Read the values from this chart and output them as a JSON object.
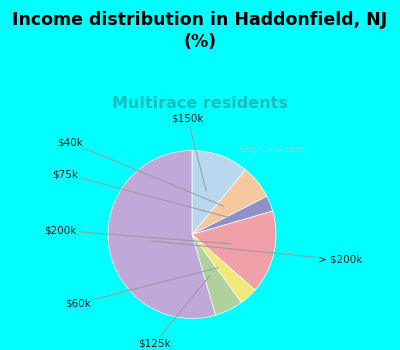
{
  "title": "Income distribution in Haddonfield, NJ\n(%)",
  "subtitle": "Multirace residents",
  "subtitle_color": "#1abcbc",
  "bg_color": "#00ffff",
  "chart_bg_color": "#eaf5e8",
  "watermark": "City-Data.com",
  "slices": [
    {
      "label": "$150k",
      "value": 11.0,
      "color": "#b8d8f0"
    },
    {
      "label": "$40k",
      "value": 6.5,
      "color": "#f5c8a0"
    },
    {
      "label": "$75k",
      "value": 3.0,
      "color": "#9090c8"
    },
    {
      "label": "$200k",
      "value": 16.0,
      "color": "#f0a0a8"
    },
    {
      "label": "$60k",
      "value": 3.5,
      "color": "#f0e878"
    },
    {
      "label": "$125k",
      "value": 5.5,
      "color": "#b0d0a0"
    },
    {
      "label": "> $200k",
      "value": 54.5,
      "color": "#c0a8d8"
    }
  ],
  "title_fontsize": 12.5,
  "subtitle_fontsize": 11.5,
  "label_fontsize": 7.5
}
